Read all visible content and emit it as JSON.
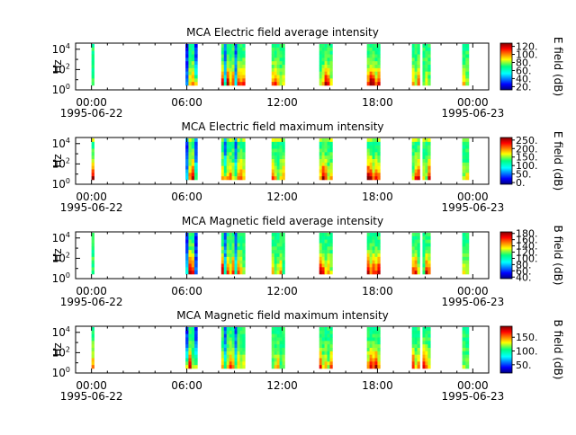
{
  "chart_data": [
    {
      "type": "heatmap",
      "title": "MCA  Electric field average intensity",
      "ylabel": "Hz",
      "colorbar_label": "E field (dB)",
      "colorbar_ticks": [
        "20.",
        "40.",
        "60.",
        "80.",
        "100.",
        "120."
      ],
      "colorbar_range": [
        12,
        128
      ],
      "y_scale": "log",
      "y_ticks": [
        "10^0",
        "10^2",
        "10^4"
      ],
      "x_ticks": [
        {
          "time": "00:00",
          "date": "1995-06-22"
        },
        {
          "time": "06:00",
          "date": ""
        },
        {
          "time": "12:00",
          "date": ""
        },
        {
          "time": "18:00",
          "date": ""
        },
        {
          "time": "00:00",
          "date": "1995-06-23"
        }
      ],
      "xlim": [
        "1995-06-21T23:00",
        "1995-06-23T01:00"
      ]
    },
    {
      "type": "heatmap",
      "title": "MCA  Electric field maximum intensity",
      "ylabel": "Hz",
      "colorbar_label": "E field (dB)",
      "colorbar_ticks": [
        "0.",
        "50.",
        "100.",
        "150.",
        "200.",
        "250."
      ],
      "colorbar_range": [
        -10,
        265
      ],
      "y_scale": "log",
      "y_ticks": [
        "10^0",
        "10^2",
        "10^4"
      ],
      "x_ticks": [
        {
          "time": "00:00",
          "date": "1995-06-22"
        },
        {
          "time": "06:00",
          "date": ""
        },
        {
          "time": "12:00",
          "date": ""
        },
        {
          "time": "18:00",
          "date": ""
        },
        {
          "time": "00:00",
          "date": "1995-06-23"
        }
      ],
      "xlim": [
        "1995-06-21T23:00",
        "1995-06-23T01:00"
      ]
    },
    {
      "type": "heatmap",
      "title": "MCA  Magnetic field average intensity",
      "ylabel": "Hz",
      "colorbar_label": "B field (dB)",
      "colorbar_ticks": [
        "40.",
        "60.",
        "80.",
        "100.",
        "120.",
        "140.",
        "160.",
        "180."
      ],
      "colorbar_range": [
        35,
        185
      ],
      "y_scale": "log",
      "y_ticks": [
        "10^0",
        "10^2",
        "10^4"
      ],
      "x_ticks": [
        {
          "time": "00:00",
          "date": "1995-06-22"
        },
        {
          "time": "06:00",
          "date": ""
        },
        {
          "time": "12:00",
          "date": ""
        },
        {
          "time": "18:00",
          "date": ""
        },
        {
          "time": "00:00",
          "date": "1995-06-23"
        }
      ],
      "xlim": [
        "1995-06-21T23:00",
        "1995-06-23T01:00"
      ]
    },
    {
      "type": "heatmap",
      "title": "MCA  Magnetic field maximum intensity",
      "ylabel": "Hz",
      "colorbar_label": "B field (dB)",
      "colorbar_ticks": [
        "50.",
        "100.",
        "150."
      ],
      "colorbar_range": [
        20,
        190
      ],
      "y_scale": "log",
      "y_ticks": [
        "10^0",
        "10^2",
        "10^4"
      ],
      "x_ticks": [
        {
          "time": "00:00",
          "date": "1995-06-22"
        },
        {
          "time": "06:00",
          "date": ""
        },
        {
          "time": "12:00",
          "date": ""
        },
        {
          "time": "18:00",
          "date": ""
        },
        {
          "time": "00:00",
          "date": "1995-06-23"
        }
      ],
      "xlim": [
        "1995-06-21T23:00",
        "1995-06-23T01:00"
      ]
    }
  ],
  "data_intervals": [
    {
      "start": "1995-06-22T00:00",
      "end": "1995-06-22T00:05"
    },
    {
      "start": "1995-06-22T05:55",
      "end": "1995-06-22T06:40"
    },
    {
      "start": "1995-06-22T08:10",
      "end": "1995-06-22T09:40"
    },
    {
      "start": "1995-06-22T11:20",
      "end": "1995-06-22T12:10"
    },
    {
      "start": "1995-06-22T14:20",
      "end": "1995-06-22T15:10"
    },
    {
      "start": "1995-06-22T17:20",
      "end": "1995-06-22T18:10"
    },
    {
      "start": "1995-06-22T20:10",
      "end": "1995-06-22T20:40"
    },
    {
      "start": "1995-06-22T20:50",
      "end": "1995-06-22T21:20"
    },
    {
      "start": "1995-06-22T23:20",
      "end": "1995-06-22T23:45"
    }
  ]
}
